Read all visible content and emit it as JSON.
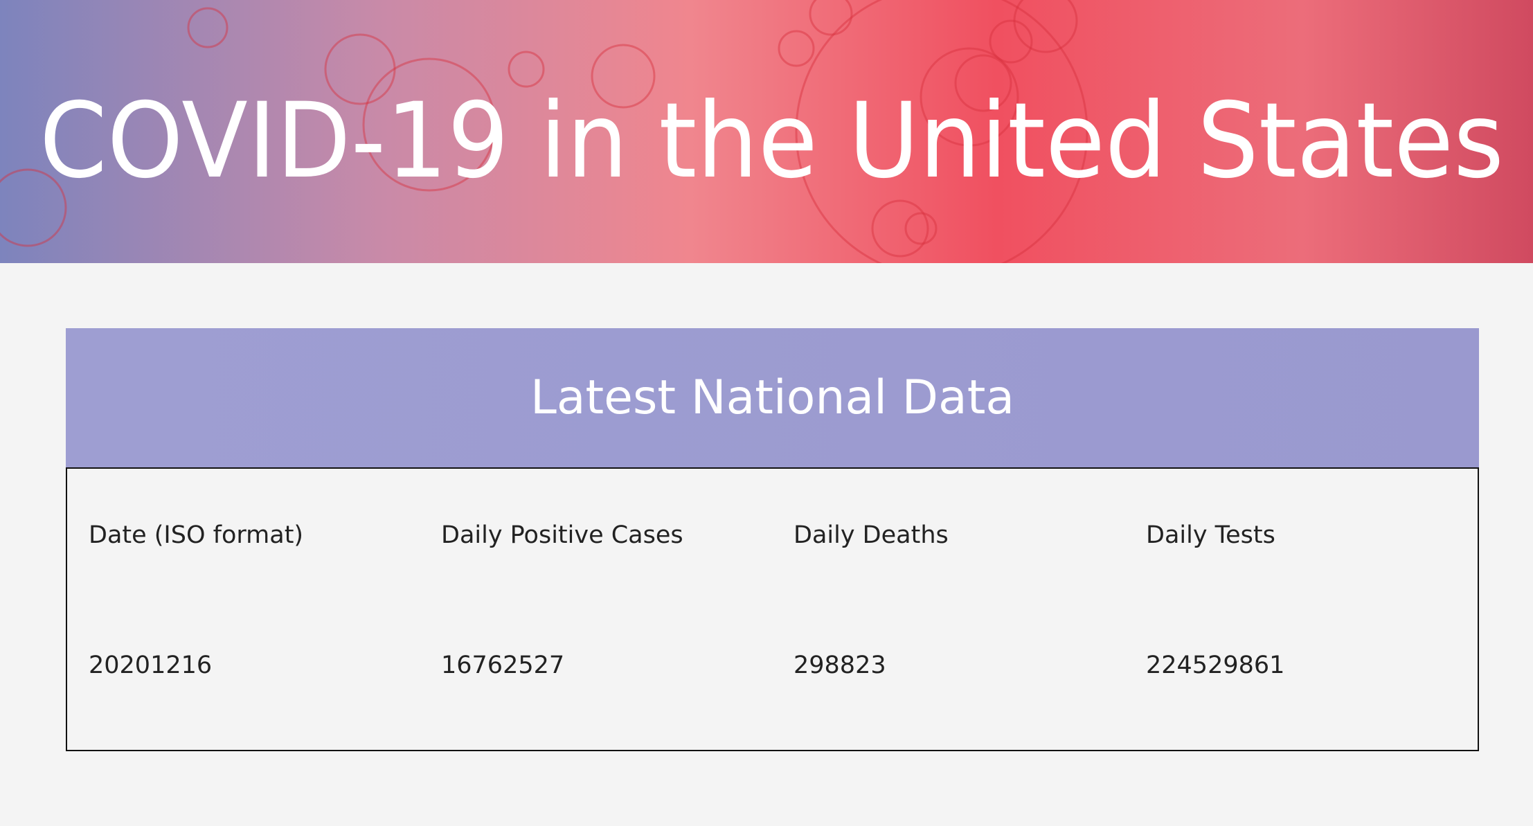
{
  "header": {
    "title": "COVID-19 in the United States"
  },
  "table": {
    "title": "Latest National Data",
    "columns": [
      "Date (ISO format)",
      "Daily Positive Cases",
      "Daily Deaths",
      "Daily Tests"
    ],
    "rows": [
      [
        "20201216",
        16762527,
        298823,
        224529861
      ]
    ]
  }
}
